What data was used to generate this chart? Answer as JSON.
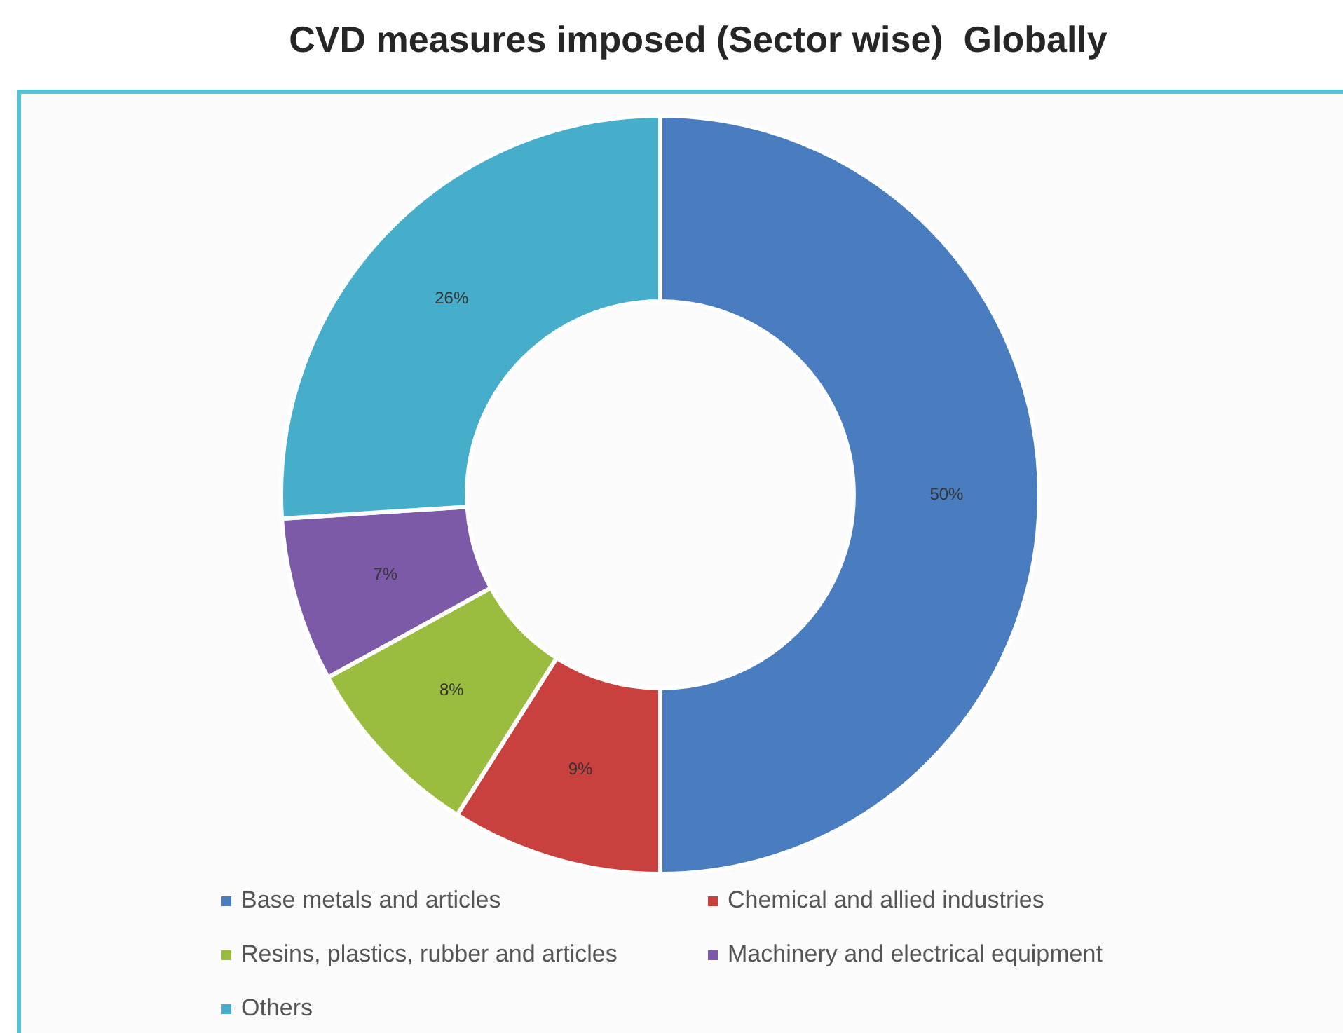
{
  "chart_data": {
    "type": "donut",
    "title": "CVD measures imposed (Sector wise)  Globally",
    "categories": [
      "Base metals and articles",
      "Chemical and allied industries",
      "Resins, plastics, rubber and articles",
      "Machinery and electrical equipment",
      "Others"
    ],
    "values": [
      50,
      9,
      8,
      7,
      26
    ],
    "colors": [
      "#4a7cc0",
      "#c9413e",
      "#9bbd3f",
      "#7c5aa8",
      "#46adcb"
    ],
    "value_labels": [
      "50%",
      "9%",
      "8%",
      "7%",
      "26%"
    ],
    "legend": "bottom"
  }
}
